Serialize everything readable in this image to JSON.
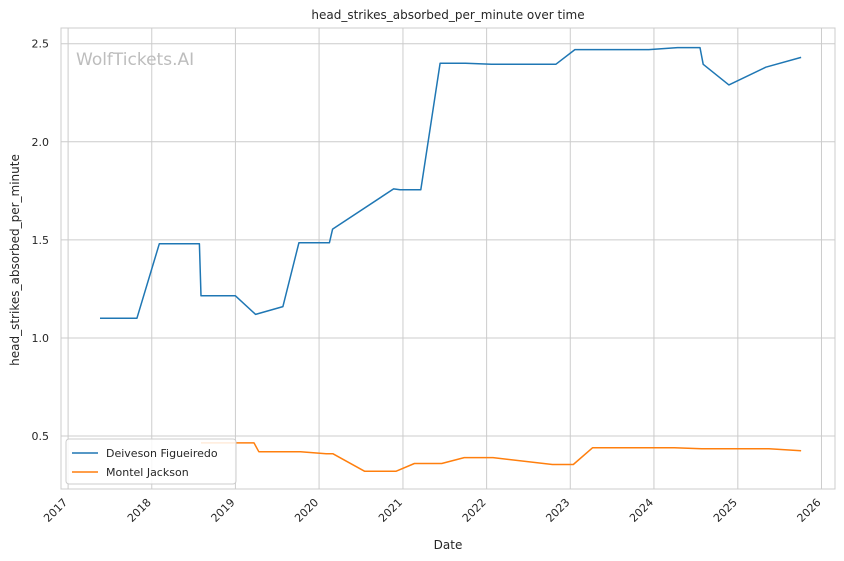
{
  "chart_data": {
    "type": "line",
    "title": "head_strikes_absorbed_per_minute over time",
    "xlabel": "Date",
    "ylabel": "head_strikes_absorbed_per_minute",
    "watermark": "WolfTickets.AI",
    "x_ticks": [
      "2017",
      "2018",
      "2019",
      "2020",
      "2021",
      "2022",
      "2023",
      "2024",
      "2025",
      "2026"
    ],
    "y_ticks": [
      "0.5",
      "1.0",
      "1.5",
      "2.0",
      "2.5"
    ],
    "xlim": [
      "2016-12-01",
      "2026-03-01"
    ],
    "ylim": [
      0.23,
      2.58
    ],
    "grid": true,
    "legend_position": "lower-left",
    "series": [
      {
        "name": "Deiveson Figueiredo",
        "color": "#1f77b4",
        "points": [
          [
            "2017-05-20",
            1.1
          ],
          [
            "2017-10-28",
            1.1
          ],
          [
            "2018-02-03",
            1.48
          ],
          [
            "2018-07-28",
            1.48
          ],
          [
            "2018-08-04",
            1.215
          ],
          [
            "2019-01-01",
            1.215
          ],
          [
            "2019-03-30",
            1.12
          ],
          [
            "2019-07-27",
            1.16
          ],
          [
            "2019-10-05",
            1.485
          ],
          [
            "2020-02-15",
            1.485
          ],
          [
            "2020-02-29",
            1.555
          ],
          [
            "2020-11-21",
            1.76
          ],
          [
            "2020-12-19",
            1.755
          ],
          [
            "2021-03-20",
            1.755
          ],
          [
            "2021-06-12",
            2.4
          ],
          [
            "2021-10-01",
            2.4
          ],
          [
            "2022-01-22",
            2.395
          ],
          [
            "2022-10-30",
            2.395
          ],
          [
            "2023-01-21",
            2.47
          ],
          [
            "2023-12-10",
            2.47
          ],
          [
            "2024-04-13",
            2.48
          ],
          [
            "2024-07-20",
            2.48
          ],
          [
            "2024-08-03",
            2.395
          ],
          [
            "2024-11-23",
            2.29
          ],
          [
            "2025-05-03",
            2.38
          ],
          [
            "2025-10-04",
            2.43
          ]
        ]
      },
      {
        "name": "Montel Jackson",
        "color": "#ff7f0e",
        "points": [
          [
            "2018-08-04",
            0.465
          ],
          [
            "2019-03-23",
            0.465
          ],
          [
            "2019-04-13",
            0.42
          ],
          [
            "2019-10-12",
            0.42
          ],
          [
            "2020-02-01",
            0.41
          ],
          [
            "2020-03-01",
            0.41
          ],
          [
            "2020-07-18",
            0.32
          ],
          [
            "2020-12-01",
            0.32
          ],
          [
            "2021-02-20",
            0.36
          ],
          [
            "2021-06-19",
            0.36
          ],
          [
            "2021-09-25",
            0.39
          ],
          [
            "2022-01-29",
            0.39
          ],
          [
            "2022-10-15",
            0.355
          ],
          [
            "2023-01-14",
            0.355
          ],
          [
            "2023-04-08",
            0.44
          ],
          [
            "2024-03-30",
            0.44
          ],
          [
            "2024-07-27",
            0.435
          ],
          [
            "2025-05-17",
            0.435
          ],
          [
            "2025-10-04",
            0.425
          ]
        ]
      }
    ]
  }
}
